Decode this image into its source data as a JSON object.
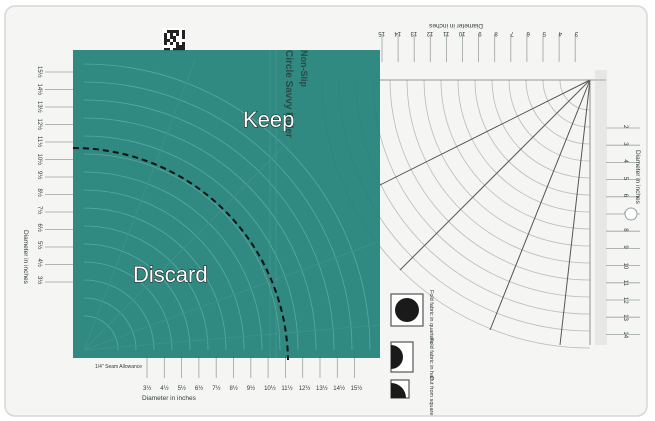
{
  "overlay": {
    "keep_label": "Keep",
    "discard_label": "Discard",
    "color": "#1e8078"
  },
  "ruler": {
    "brand_line1": "Non-Slip",
    "brand_line2": "Circle Savvy Ruler",
    "bottom_axis_label": "Diameter in inches",
    "left_axis_label": "Diameter in inches",
    "top_axis_label": "Diameter in inches",
    "right_axis_label": "Diameter in inches",
    "seam_allowance": "1/4\" Seam Allowance",
    "bottom_numbers": [
      "3½",
      "4½",
      "5½",
      "6½",
      "7½",
      "8½",
      "9½",
      "10½",
      "11½",
      "12½",
      "13½",
      "14½",
      "15½"
    ],
    "left_numbers": [
      "15½",
      "14½",
      "13½",
      "12½",
      "11½",
      "10½",
      "9½",
      "8½",
      "7½",
      "6½",
      "5½",
      "4½",
      "3½"
    ],
    "top_numbers": [
      "15",
      "14",
      "13",
      "12",
      "11",
      "10",
      "9",
      "8",
      "7",
      "6",
      "5",
      "4",
      "3"
    ],
    "right_numbers": [
      "2",
      "3",
      "4",
      "5",
      "6",
      "7",
      "8",
      "9",
      "10",
      "11",
      "12",
      "13",
      "14"
    ],
    "fold_quarters_label": "Fold fabric in quarters",
    "fold_half_label": "Fold fabric in half",
    "cut_square_label": "Cut from square"
  }
}
